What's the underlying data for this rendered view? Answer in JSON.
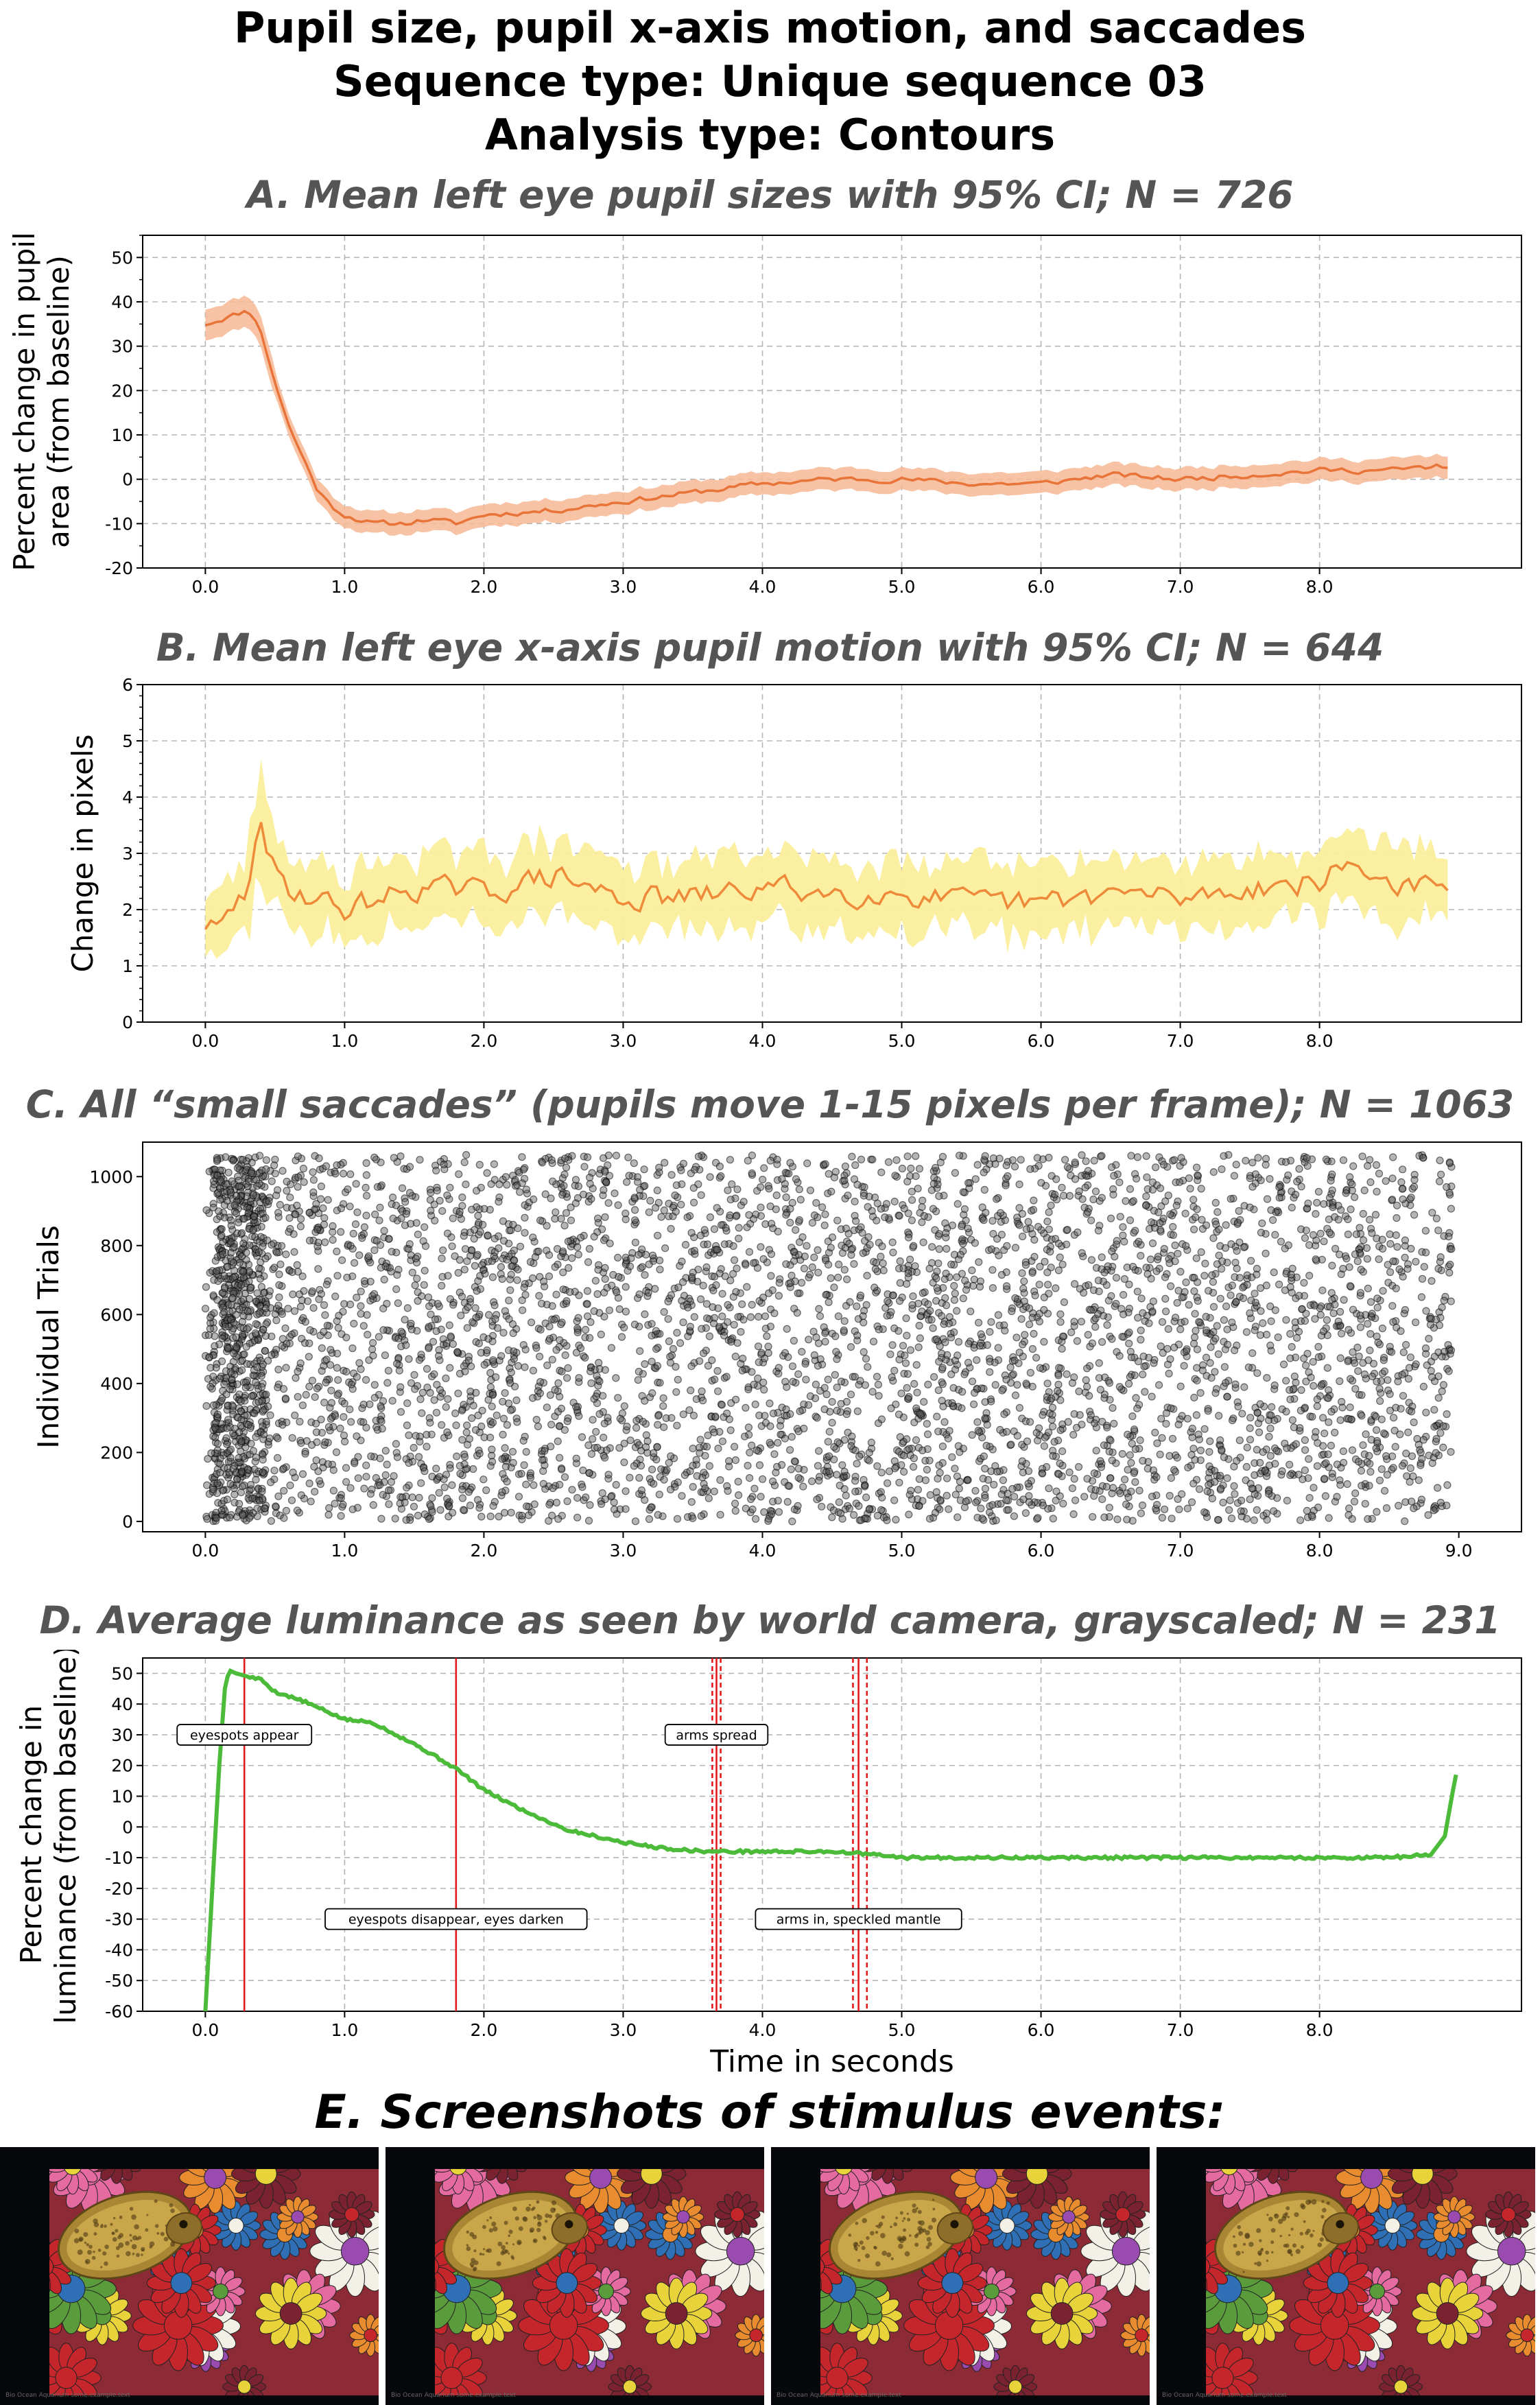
{
  "page": {
    "title_lines": [
      "Pupil size, pupil x-axis motion, and saccades",
      "Sequence type: Unique sequence 03",
      "Analysis type: Contours"
    ],
    "panel_e_title": "E. Screenshots of stimulus events:"
  },
  "colors": {
    "pupil_line": "#e8743a",
    "pupil_ci": "#f6b894",
    "motion_line": "#ee8b3a",
    "motion_ci": "#fbef9c",
    "saccade_dot": "#000000",
    "luminance_line": "#4cbb3a",
    "event_line": "#e31a1c",
    "panel_title": "#555555"
  },
  "chart_data": [
    {
      "id": "A",
      "type": "line",
      "title": "A. Mean left eye pupil sizes with 95% CI; N = 726",
      "ylabel": [
        "Percent change in pupil",
        "area (from baseline)"
      ],
      "xlabel": "",
      "xlim": [
        -0.45,
        9.45
      ],
      "ylim": [
        -20,
        55
      ],
      "xticks": [
        "0.0",
        "1.0",
        "2.0",
        "3.0",
        "4.0",
        "5.0",
        "6.0",
        "7.0",
        "8.0"
      ],
      "yticks": [
        "-20",
        "-10",
        "0",
        "10",
        "20",
        "30",
        "40",
        "50"
      ],
      "grid": true,
      "keypoints": [
        [
          0,
          35
        ],
        [
          0.1,
          36
        ],
        [
          0.2,
          37
        ],
        [
          0.3,
          38
        ],
        [
          0.35,
          37
        ],
        [
          0.4,
          33
        ],
        [
          0.5,
          22
        ],
        [
          0.6,
          12
        ],
        [
          0.7,
          5
        ],
        [
          0.8,
          -2
        ],
        [
          0.9,
          -6
        ],
        [
          1.0,
          -8
        ],
        [
          1.2,
          -10
        ],
        [
          1.4,
          -10
        ],
        [
          1.6,
          -9
        ],
        [
          1.8,
          -10
        ],
        [
          2.0,
          -8
        ],
        [
          2.5,
          -7
        ],
        [
          3.0,
          -5
        ],
        [
          3.5,
          -3
        ],
        [
          4.0,
          -1
        ],
        [
          4.5,
          0
        ],
        [
          5.0,
          0
        ],
        [
          5.5,
          -1
        ],
        [
          6.0,
          -1
        ],
        [
          6.5,
          1
        ],
        [
          7.0,
          0
        ],
        [
          7.5,
          1
        ],
        [
          8.0,
          2
        ],
        [
          8.5,
          2
        ],
        [
          8.9,
          3
        ]
      ],
      "ci_halfwidth": 2.5,
      "noise_amplitude": 1.0,
      "series": [
        {
          "name": "",
          "color": "#e8743a"
        }
      ]
    },
    {
      "id": "B",
      "type": "line",
      "title": "B. Mean left eye x-axis pupil motion with 95% CI; N = 644",
      "ylabel": [
        "Change in pixels"
      ],
      "xlabel": "",
      "xlim": [
        -0.45,
        9.45
      ],
      "ylim": [
        0,
        6
      ],
      "xticks": [
        "0.0",
        "1.0",
        "2.0",
        "3.0",
        "4.0",
        "5.0",
        "6.0",
        "7.0",
        "8.0"
      ],
      "yticks": [
        "0",
        "1",
        "2",
        "3",
        "4",
        "5",
        "6"
      ],
      "grid": true,
      "keypoints": [
        [
          0,
          1.75
        ],
        [
          0.1,
          1.6
        ],
        [
          0.2,
          2.0
        ],
        [
          0.3,
          2.3
        ],
        [
          0.38,
          3.7
        ],
        [
          0.45,
          2.8
        ],
        [
          0.6,
          2.4
        ],
        [
          1.0,
          2.0
        ],
        [
          1.5,
          2.4
        ],
        [
          2.0,
          2.3
        ],
        [
          2.5,
          2.6
        ],
        [
          3.0,
          2.2
        ],
        [
          3.5,
          2.2
        ],
        [
          4.0,
          2.4
        ],
        [
          4.5,
          2.3
        ],
        [
          5.0,
          2.3
        ],
        [
          5.5,
          2.1
        ],
        [
          6.0,
          2.1
        ],
        [
          6.5,
          2.3
        ],
        [
          7.0,
          2.2
        ],
        [
          7.5,
          2.4
        ],
        [
          8.0,
          2.5
        ],
        [
          8.2,
          2.8
        ],
        [
          8.5,
          2.5
        ],
        [
          8.9,
          2.3
        ]
      ],
      "ci_halfwidth": 0.55,
      "noise_amplitude": 0.35,
      "series": [
        {
          "name": "",
          "color": "#ee8b3a"
        }
      ]
    },
    {
      "id": "C",
      "type": "scatter",
      "title": "C. All “small saccades” (pupils move 1-15 pixels per frame); N = 1063",
      "ylabel": [
        "Individual Trials"
      ],
      "xlabel": "",
      "xlim": [
        -0.45,
        9.45
      ],
      "ylim": [
        -30,
        1100
      ],
      "xticks": [
        "0.0",
        "1.0",
        "2.0",
        "3.0",
        "4.0",
        "5.0",
        "6.0",
        "7.0",
        "8.0",
        "9.0"
      ],
      "yticks": [
        "0",
        "200",
        "400",
        "600",
        "800",
        "1000"
      ],
      "grid": false,
      "point_count": 5200,
      "x_range": [
        0.0,
        8.95
      ],
      "y_range": [
        0,
        1063
      ],
      "dense_band": [
        0.05,
        0.45
      ],
      "series": [
        {
          "name": "",
          "color": "#000000"
        }
      ]
    },
    {
      "id": "D",
      "type": "line",
      "title": "D. Average luminance as seen by world camera, grayscaled; N = 231",
      "ylabel": [
        "Percent change in",
        "luminance (from baseline)"
      ],
      "xlabel": "Time in seconds",
      "xlim": [
        -0.45,
        9.45
      ],
      "ylim": [
        -60,
        55
      ],
      "xticks": [
        "0.0",
        "1.0",
        "2.0",
        "3.0",
        "4.0",
        "5.0",
        "6.0",
        "7.0",
        "8.0"
      ],
      "yticks": [
        "-60",
        "-50",
        "-40",
        "-30",
        "-20",
        "-10",
        "0",
        "10",
        "20",
        "30",
        "40",
        "50"
      ],
      "grid": true,
      "keypoints": [
        [
          0.0,
          -60
        ],
        [
          0.05,
          -20
        ],
        [
          0.1,
          20
        ],
        [
          0.14,
          45
        ],
        [
          0.17,
          51
        ],
        [
          0.22,
          50
        ],
        [
          0.3,
          49
        ],
        [
          0.4,
          48
        ],
        [
          0.5,
          44
        ],
        [
          0.7,
          41
        ],
        [
          1.0,
          35
        ],
        [
          1.2,
          34
        ],
        [
          1.5,
          27
        ],
        [
          1.8,
          19
        ],
        [
          2.0,
          12
        ],
        [
          2.3,
          5
        ],
        [
          2.6,
          -1
        ],
        [
          3.0,
          -5
        ],
        [
          3.3,
          -7
        ],
        [
          3.6,
          -8
        ],
        [
          4.0,
          -8
        ],
        [
          4.5,
          -8
        ],
        [
          4.8,
          -9
        ],
        [
          5.0,
          -10
        ],
        [
          5.5,
          -10
        ],
        [
          6.0,
          -10
        ],
        [
          6.5,
          -10
        ],
        [
          7.0,
          -10
        ],
        [
          7.5,
          -10
        ],
        [
          8.0,
          -10
        ],
        [
          8.5,
          -10
        ],
        [
          8.8,
          -9
        ],
        [
          8.9,
          -3
        ],
        [
          8.95,
          10
        ],
        [
          8.98,
          17
        ]
      ],
      "events": [
        {
          "x": 0.28,
          "style": "solid"
        },
        {
          "x": 1.8,
          "style": "solid"
        },
        {
          "x": 3.64,
          "style": "dashed"
        },
        {
          "x": 3.67,
          "style": "solid"
        },
        {
          "x": 3.7,
          "style": "dashed"
        },
        {
          "x": 4.65,
          "style": "dashed"
        },
        {
          "x": 4.69,
          "style": "solid"
        },
        {
          "x": 4.75,
          "style": "dashed"
        }
      ],
      "annotations": [
        {
          "text": "eyespots appear",
          "x": 0.28,
          "y": 30
        },
        {
          "text": "eyespots disappear, eyes darken",
          "x": 1.8,
          "y": -30
        },
        {
          "text": "arms spread",
          "x": 3.67,
          "y": 30
        },
        {
          "text": "arms in, speckled mantle",
          "x": 4.69,
          "y": -30
        }
      ],
      "series": [
        {
          "name": "",
          "color": "#4cbb3a"
        }
      ]
    }
  ],
  "screenshots": [
    {
      "caption": "Bio Ocean Aquarium\nsome.example.text"
    },
    {
      "caption": "Bio Ocean Aquarium\nsome.example.text"
    },
    {
      "caption": "Bio Ocean Aquarium\nsome.example.text"
    },
    {
      "caption": "Bio Ocean Aquarium\nsome.example.text"
    }
  ]
}
